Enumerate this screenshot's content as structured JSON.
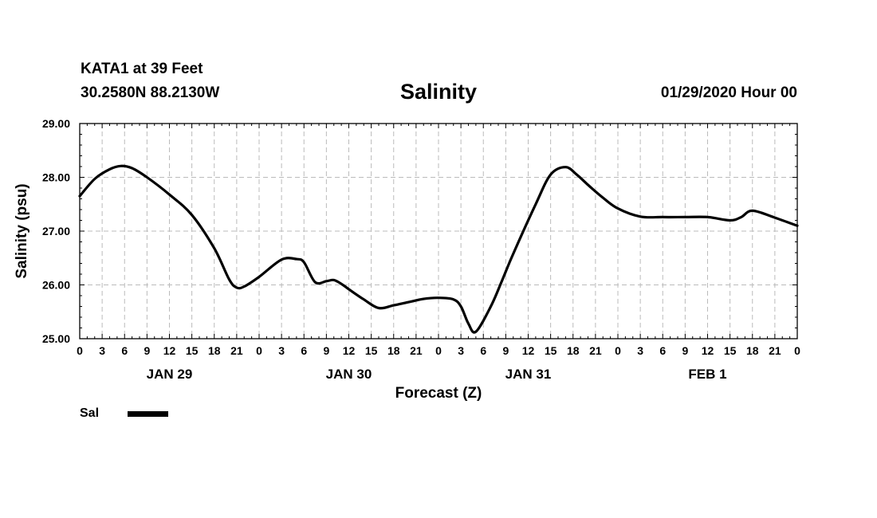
{
  "header": {
    "station": "KATA1 at 39 Feet",
    "coordinates": "30.2580N 88.2130W",
    "title": "Salinity",
    "datetime": "01/29/2020 Hour 00"
  },
  "legend": {
    "label": "Sal",
    "color": "#000000"
  },
  "chart_data": {
    "type": "line",
    "title": "Salinity",
    "xlabel": "Forecast (Z)",
    "ylabel": "Salinity (psu)",
    "ylim": [
      25,
      29
    ],
    "xlim": [
      0,
      96
    ],
    "x_units": "hours since 01/29/2020 00Z",
    "grid": true,
    "y_ticks": [
      "25.00",
      "26.00",
      "27.00",
      "28.00",
      "29.00"
    ],
    "x_tick_labels": [
      "0",
      "3",
      "6",
      "9",
      "12",
      "15",
      "18",
      "21",
      "0",
      "3",
      "6",
      "9",
      "12",
      "15",
      "18",
      "21",
      "0",
      "3",
      "6",
      "9",
      "12",
      "15",
      "18",
      "21",
      "0",
      "3",
      "6",
      "9",
      "12",
      "15",
      "18",
      "21",
      "0"
    ],
    "day_labels": [
      {
        "label": "JAN 29",
        "hour": 12
      },
      {
        "label": "JAN 30",
        "hour": 36
      },
      {
        "label": "JAN 31",
        "hour": 60
      },
      {
        "label": "FEB 1",
        "hour": 84
      }
    ],
    "series": [
      {
        "name": "Sal",
        "color": "#000000",
        "x": [
          0,
          2,
          4,
          5.5,
          7,
          9,
          12,
          15,
          18,
          20,
          21,
          22,
          24,
          27,
          29,
          30,
          31.5,
          33,
          34,
          35,
          36,
          38,
          40,
          42,
          44,
          46,
          48,
          50,
          51,
          52,
          53,
          55,
          56.5,
          58,
          61,
          63,
          65,
          66.5,
          68,
          70,
          72,
          75,
          78,
          81,
          84,
          87,
          88.5,
          90,
          93,
          96
        ],
        "values": [
          27.65,
          27.97,
          28.15,
          28.21,
          28.17,
          28.0,
          27.68,
          27.3,
          26.68,
          26.1,
          25.95,
          25.97,
          26.15,
          26.47,
          26.48,
          26.42,
          26.05,
          26.07,
          26.09,
          26.02,
          25.92,
          25.73,
          25.57,
          25.62,
          25.68,
          25.74,
          25.76,
          25.73,
          25.6,
          25.28,
          25.13,
          25.6,
          26.08,
          26.58,
          27.5,
          28.05,
          28.19,
          28.05,
          27.86,
          27.62,
          27.42,
          27.27,
          27.26,
          27.26,
          27.26,
          27.2,
          27.26,
          27.38,
          27.25,
          27.1
        ]
      }
    ]
  }
}
